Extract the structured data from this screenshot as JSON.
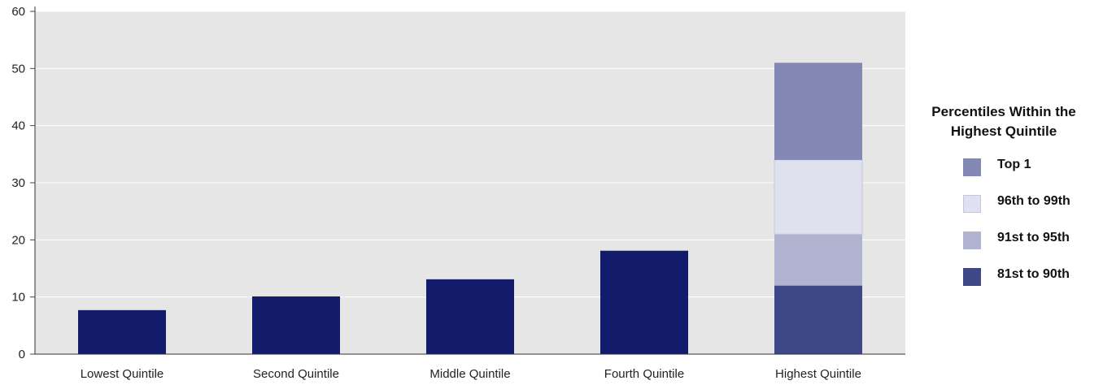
{
  "chart_data": {
    "type": "bar",
    "categories": [
      "Lowest Quintile",
      "Second Quintile",
      "Middle Quintile",
      "Fourth Quintile",
      "Highest Quintile"
    ],
    "values": [
      7.7,
      10.1,
      13.1,
      18.1,
      51.0
    ],
    "highest_quintile_breakdown": [
      {
        "name": "81st to 90th",
        "value": 12.0,
        "color": "#3e4888"
      },
      {
        "name": "91st to 95th",
        "value": 9.0,
        "color": "#b0b4d0"
      },
      {
        "name": "96th to 99th",
        "value": 13.0,
        "color": "#dfe1ee"
      },
      {
        "name": "Top 1",
        "value": 17.0,
        "color": "#8388b4"
      }
    ],
    "bar_color": "#131c6b",
    "plot_background": "#e6e6e6",
    "ylim": [
      0,
      60
    ],
    "yticks": [
      0,
      10,
      20,
      30,
      40,
      50,
      60
    ],
    "grid": true,
    "legend": {
      "title": "Percentiles Within the Highest Quintile",
      "placement": "right",
      "items": [
        {
          "label": "Top 1",
          "color": "#8388b4"
        },
        {
          "label": "96th to 99th",
          "color": "#dfe1ee"
        },
        {
          "label": "91st to 95th",
          "color": "#b0b4d0"
        },
        {
          "label": "81st to 90th",
          "color": "#3e4888"
        }
      ]
    }
  }
}
